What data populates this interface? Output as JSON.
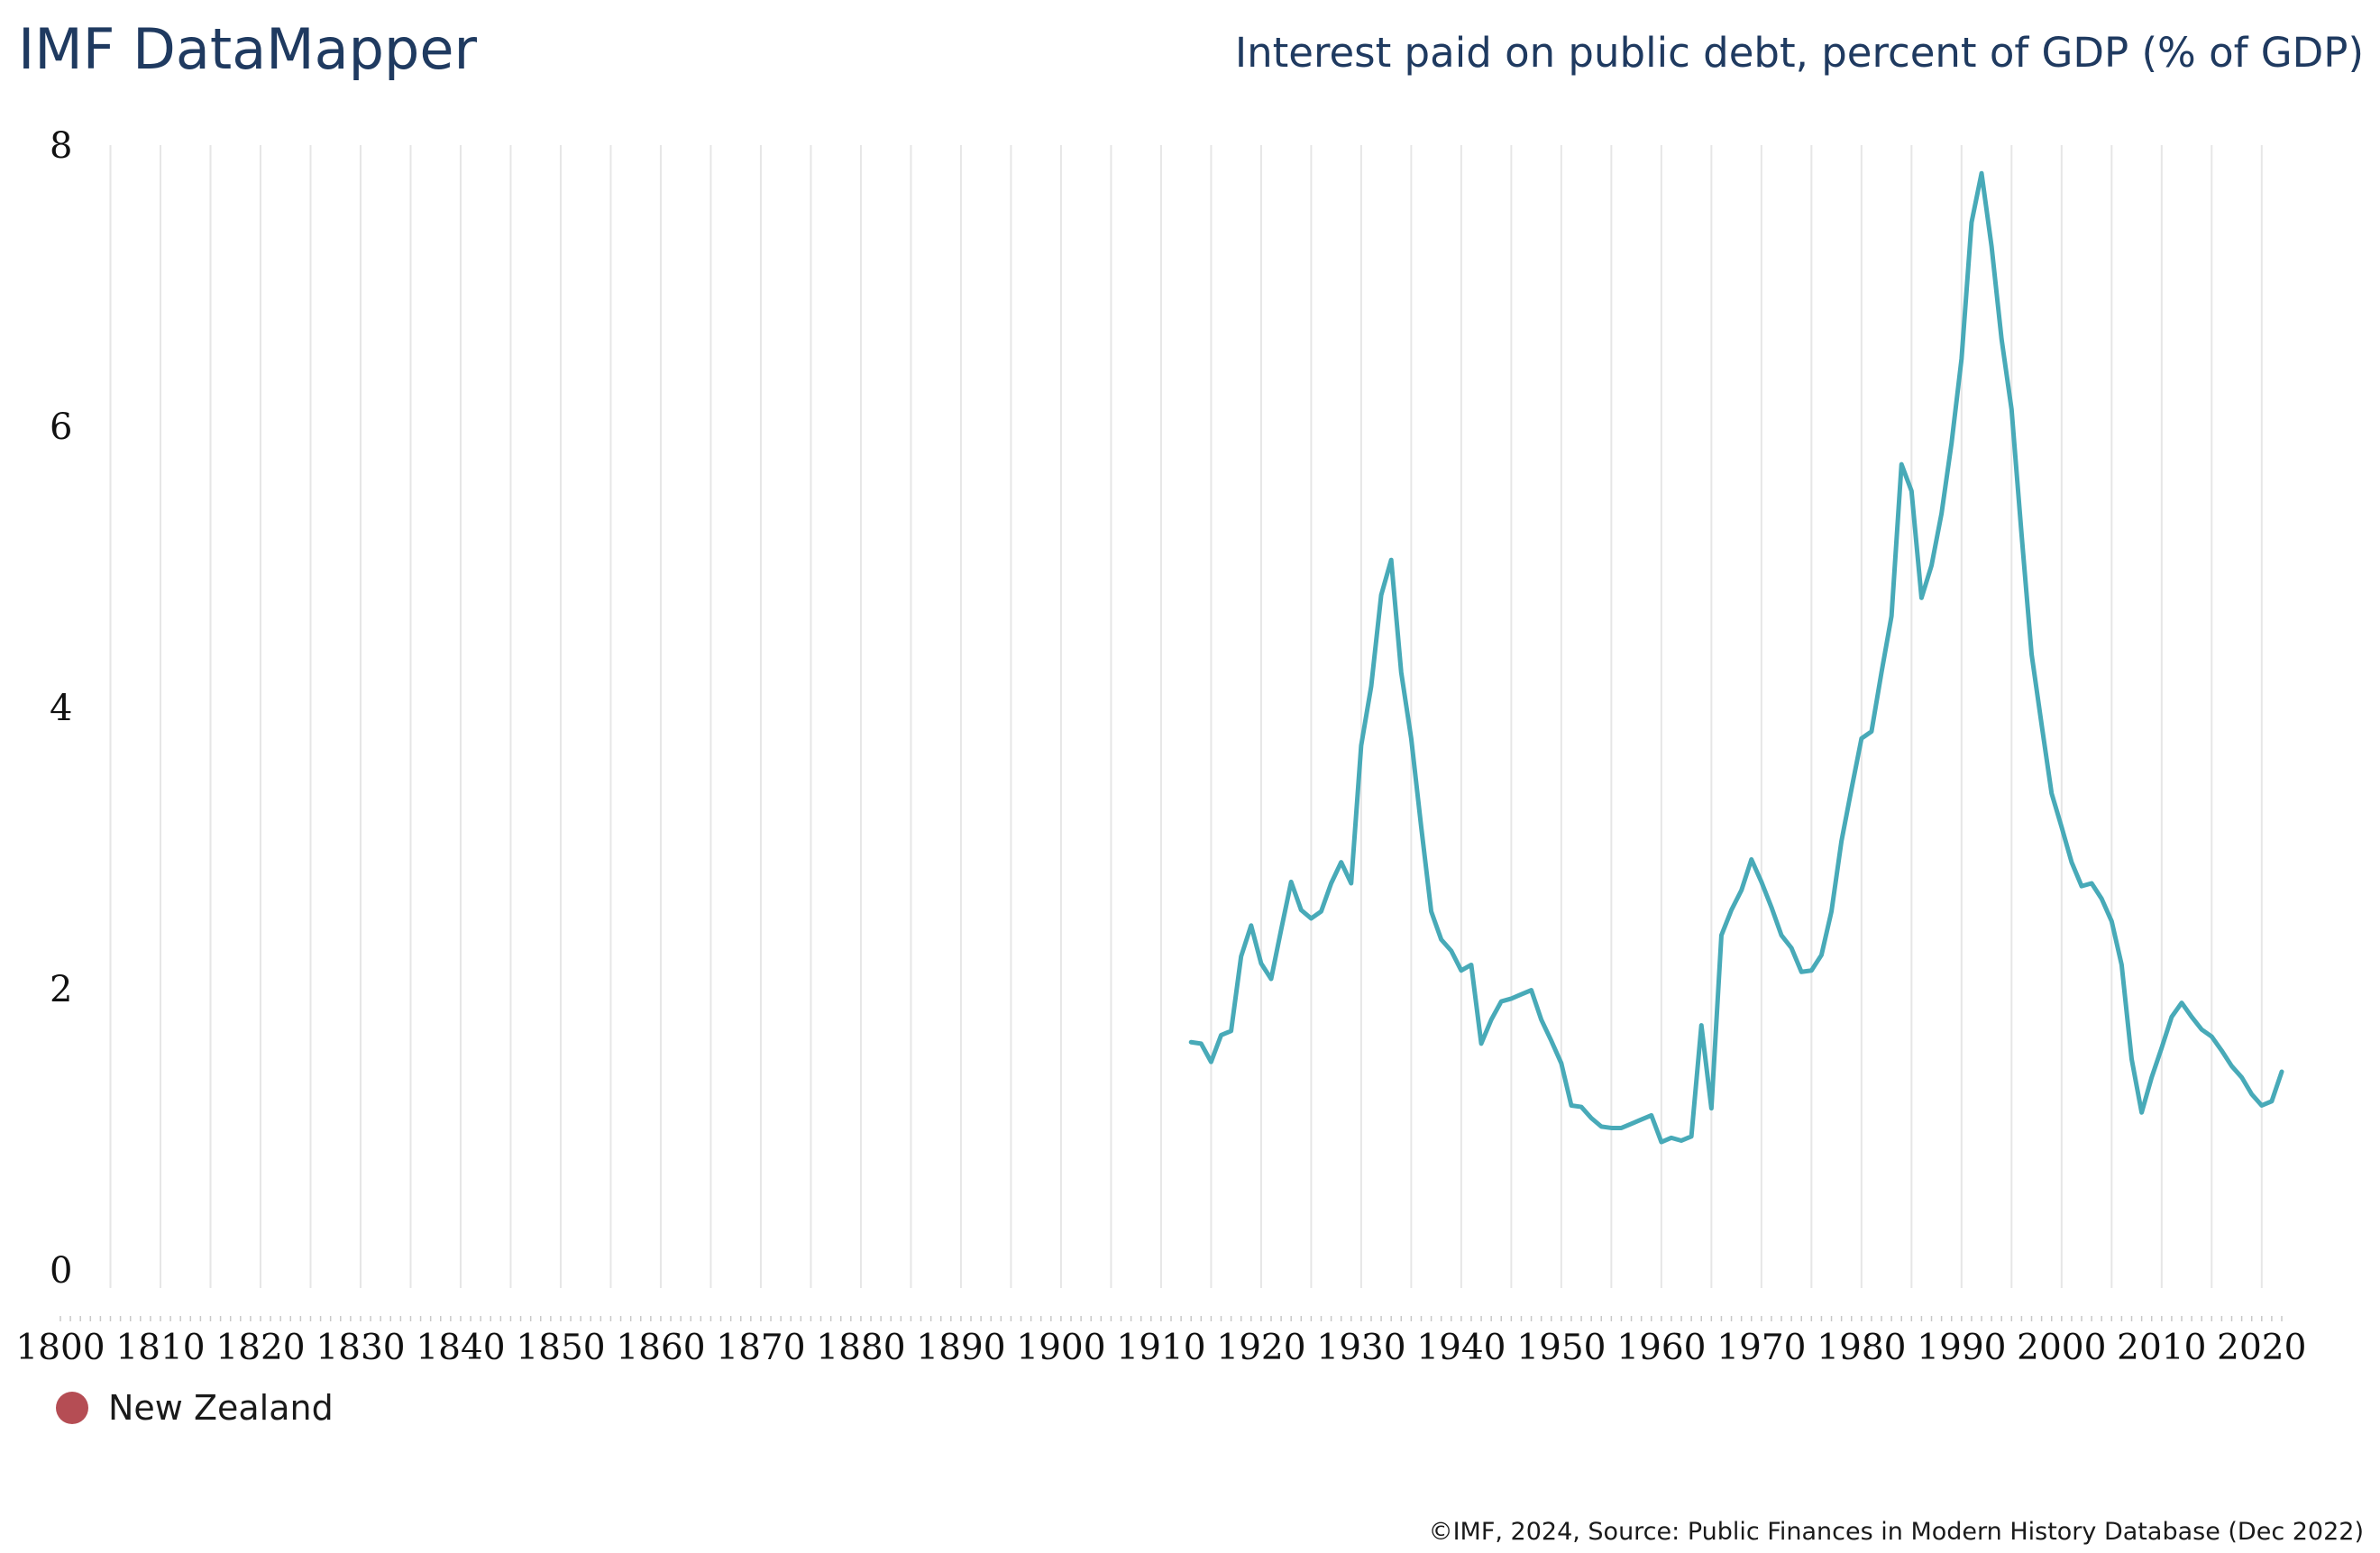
{
  "header": {
    "brand": "IMF DataMapper",
    "title": "Interest paid on public debt, percent of GDP (% of GDP)"
  },
  "footer": {
    "source": "©IMF, 2024, Source: Public Finances in Modern History Database (Dec 2022)"
  },
  "colors": {
    "brand_text": "#1f3a60",
    "line": "#48aab8",
    "legend_dot": "#b54d54",
    "grid": "#e6e6e6"
  },
  "legend": [
    {
      "label": "New Zealand",
      "color": "#b54d54"
    }
  ],
  "chart_data": {
    "type": "line",
    "title": "Interest paid on public debt, percent of GDP (% of GDP)",
    "xlabel": "",
    "ylabel": "",
    "xlim": [
      1800,
      2022
    ],
    "ylim": [
      0,
      8
    ],
    "y_ticks": [
      0,
      2,
      4,
      6,
      8
    ],
    "x_ticks": [
      1800,
      1810,
      1820,
      1830,
      1840,
      1850,
      1860,
      1870,
      1880,
      1890,
      1900,
      1910,
      1920,
      1930,
      1940,
      1950,
      1960,
      1970,
      1980,
      1990,
      2000,
      2010,
      2020
    ],
    "grid": "vertical lines at each year tick",
    "legend_position": "bottom-left",
    "series": [
      {
        "name": "New Zealand",
        "color": "#48aab8",
        "x": [
          1913,
          1914,
          1915,
          1916,
          1917,
          1918,
          1919,
          1920,
          1921,
          1922,
          1923,
          1924,
          1925,
          1926,
          1927,
          1928,
          1929,
          1930,
          1931,
          1932,
          1933,
          1934,
          1935,
          1936,
          1937,
          1938,
          1939,
          1940,
          1941,
          1942,
          1943,
          1944,
          1945,
          1946,
          1947,
          1948,
          1949,
          1950,
          1951,
          1952,
          1953,
          1954,
          1955,
          1956,
          1957,
          1958,
          1959,
          1960,
          1961,
          1962,
          1963,
          1964,
          1965,
          1966,
          1967,
          1968,
          1969,
          1970,
          1971,
          1972,
          1973,
          1974,
          1975,
          1976,
          1977,
          1978,
          1979,
          1980,
          1981,
          1982,
          1983,
          1984,
          1985,
          1986,
          1987,
          1988,
          1989,
          1990,
          1991,
          1992,
          1993,
          1994,
          1995,
          1996,
          1997,
          1998,
          1999,
          2000,
          2001,
          2002,
          2003,
          2004,
          2005,
          2006,
          2007,
          2008,
          2009,
          2010,
          2011,
          2012,
          2013,
          2014,
          2015,
          2016,
          2017,
          2018,
          2019,
          2020,
          2021,
          2022
        ],
        "values": [
          1.62,
          1.61,
          1.48,
          1.67,
          1.7,
          2.23,
          2.45,
          2.18,
          2.07,
          2.42,
          2.76,
          2.56,
          2.5,
          2.55,
          2.75,
          2.9,
          2.75,
          3.73,
          4.15,
          4.8,
          5.05,
          4.25,
          3.78,
          3.15,
          2.55,
          2.35,
          2.27,
          2.13,
          2.17,
          1.61,
          1.78,
          1.91,
          1.93,
          1.96,
          1.99,
          1.78,
          1.63,
          1.47,
          1.17,
          1.16,
          1.08,
          1.02,
          1.01,
          1.01,
          1.04,
          1.07,
          1.1,
          0.91,
          0.94,
          0.92,
          0.95,
          1.74,
          1.15,
          2.38,
          2.56,
          2.7,
          2.92,
          2.76,
          2.58,
          2.38,
          2.29,
          2.12,
          2.13,
          2.24,
          2.55,
          3.05,
          3.42,
          3.78,
          3.83,
          4.25,
          4.65,
          5.73,
          5.54,
          4.78,
          5.01,
          5.38,
          5.88,
          6.48,
          7.45,
          7.8,
          7.28,
          6.62,
          6.12,
          5.23,
          4.38,
          3.88,
          3.39,
          3.15,
          2.9,
          2.73,
          2.75,
          2.64,
          2.48,
          2.17,
          1.5,
          1.12,
          1.37,
          1.58,
          1.8,
          1.9,
          1.8,
          1.71,
          1.66,
          1.56,
          1.45,
          1.37,
          1.25,
          1.17,
          1.2,
          1.41
        ]
      }
    ]
  }
}
